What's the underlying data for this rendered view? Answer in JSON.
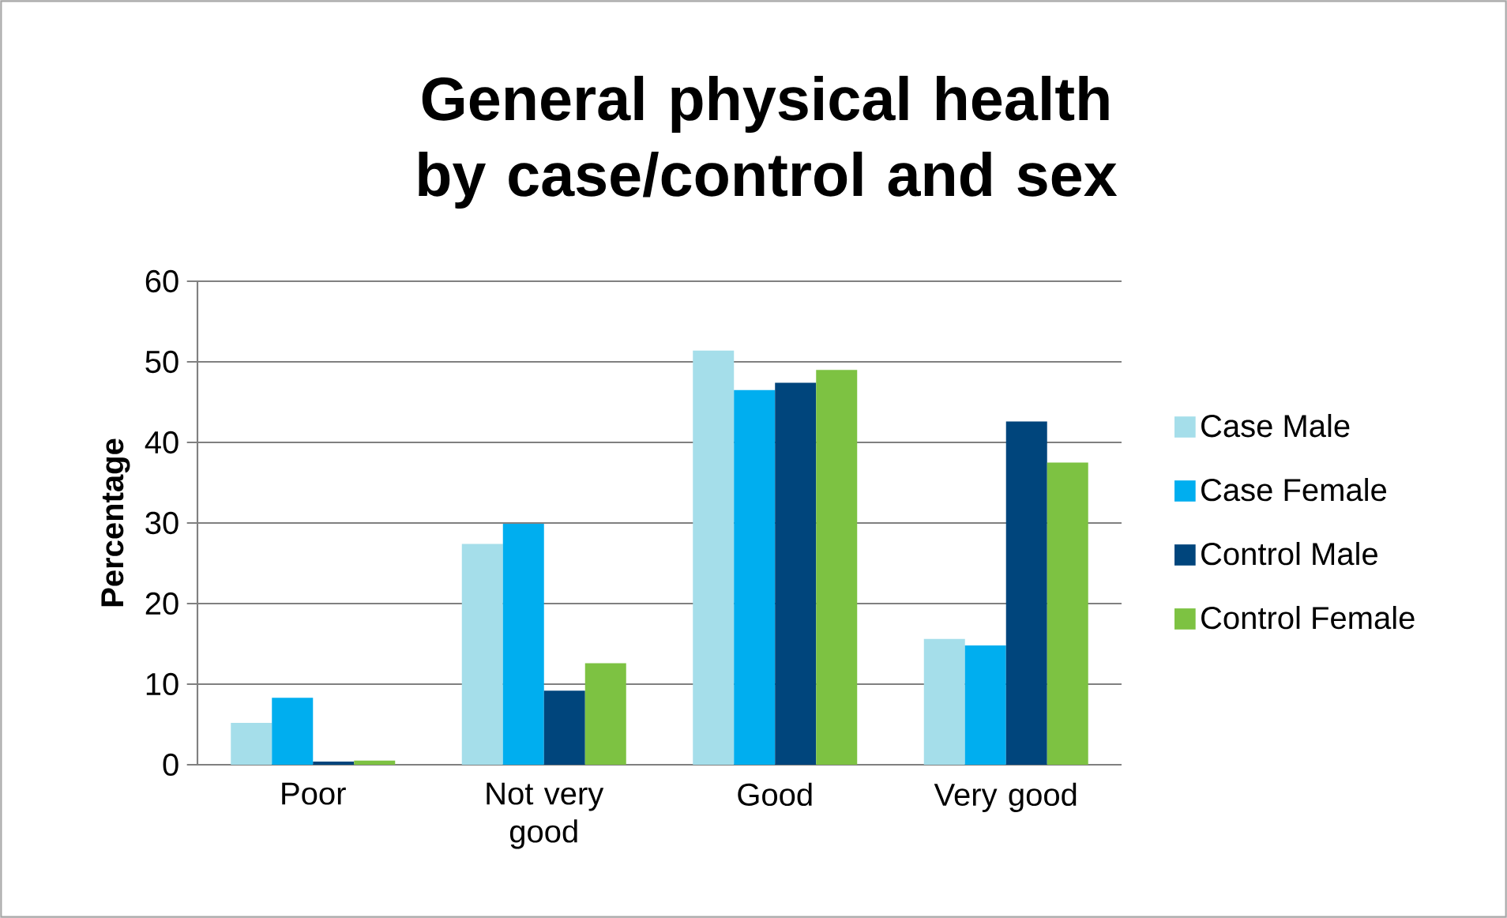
{
  "chart_data": {
    "type": "bar",
    "title": "General physical health by case/control and sex",
    "ylabel": "Percentage",
    "categories": [
      "Poor",
      "Not very good",
      "Good",
      "Very good"
    ],
    "series": [
      {
        "name": "Case Male",
        "color": "#a5deea",
        "values": [
          5.2,
          27.4,
          51.4,
          15.6
        ]
      },
      {
        "name": "Case Female",
        "color": "#00aeef",
        "values": [
          8.3,
          29.9,
          46.5,
          14.8
        ]
      },
      {
        "name": "Control Male",
        "color": "#00457c",
        "values": [
          0.4,
          9.2,
          47.4,
          42.6
        ]
      },
      {
        "name": "Control Female",
        "color": "#7dc242",
        "values": [
          0.5,
          12.6,
          49.0,
          37.5
        ]
      }
    ],
    "ylim": [
      0,
      60
    ],
    "yticks": [
      0,
      10,
      20,
      30,
      40,
      50,
      60
    ],
    "grid": "y",
    "legend": "right"
  }
}
